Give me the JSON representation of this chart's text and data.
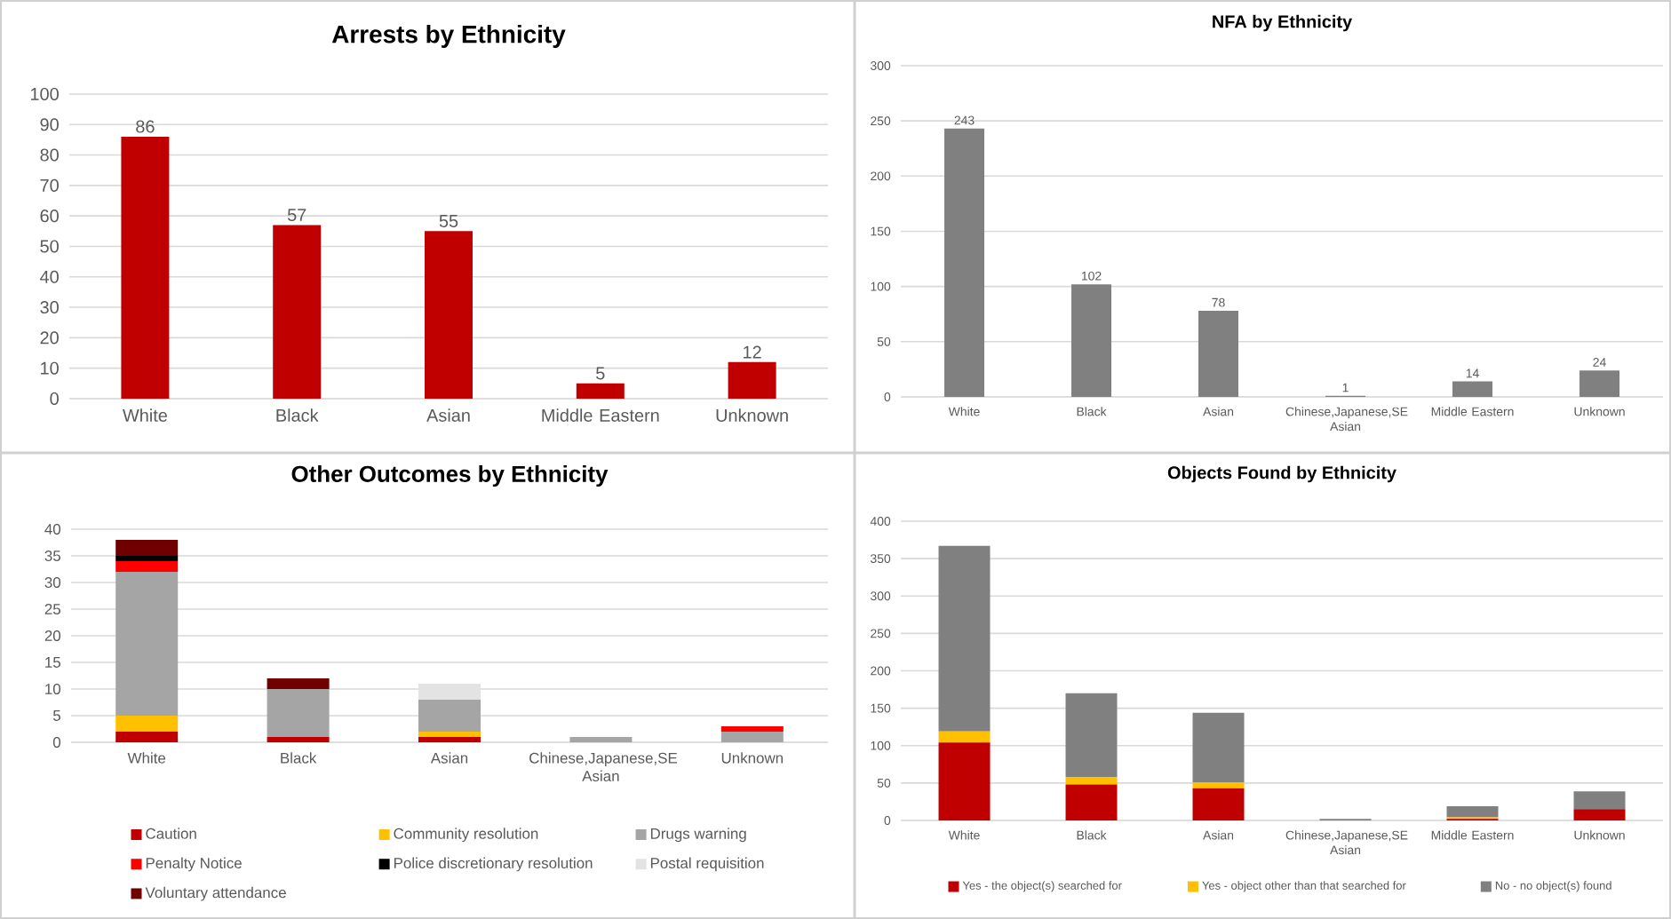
{
  "chart_data": [
    {
      "type": "bar",
      "title": "Arrests by Ethnicity",
      "categories": [
        "White",
        "Black",
        "Asian",
        "Middle Eastern",
        "Unknown"
      ],
      "values": [
        86,
        57,
        55,
        5,
        12
      ],
      "color": "#c00000",
      "ylim": [
        0,
        100
      ],
      "yticks": [
        0,
        10,
        20,
        30,
        40,
        50,
        60,
        70,
        80,
        90,
        100
      ],
      "grid": "y",
      "data_labels": true
    },
    {
      "type": "bar",
      "title": "NFA by Ethnicity",
      "categories": [
        "White",
        "Black",
        "Asian",
        "Chinese,Japanese,SE Asian",
        "Middle Eastern",
        "Unknown"
      ],
      "values": [
        243,
        102,
        78,
        1,
        14,
        24
      ],
      "color": "#808080",
      "ylim": [
        0,
        300
      ],
      "yticks": [
        0,
        50,
        100,
        150,
        200,
        250,
        300
      ],
      "grid": "y",
      "data_labels": true
    },
    {
      "type": "bar",
      "title": "Other Outcomes by Ethnicity",
      "categories": [
        "White",
        "Black",
        "Asian",
        "Chinese,Japanese,SE Asian",
        "Unknown"
      ],
      "stacked": true,
      "legend": "bottom",
      "ylim": [
        0,
        40
      ],
      "yticks": [
        0,
        5,
        10,
        15,
        20,
        25,
        30,
        35,
        40
      ],
      "grid": "y",
      "series": [
        {
          "name": "Caution",
          "color": "#c00000",
          "values": [
            2,
            1,
            1,
            0,
            0
          ]
        },
        {
          "name": "Community resolution",
          "color": "#ffc000",
          "values": [
            3,
            0,
            1,
            0,
            0
          ]
        },
        {
          "name": "Drugs warning",
          "color": "#a5a5a5",
          "values": [
            27,
            9,
            6,
            1,
            2
          ]
        },
        {
          "name": "Penalty Notice",
          "color": "#ff0000",
          "values": [
            2,
            0,
            0,
            0,
            1
          ]
        },
        {
          "name": "Police discretionary resolution",
          "color": "#000000",
          "values": [
            1,
            0,
            0,
            0,
            0
          ]
        },
        {
          "name": "Postal requisition",
          "color": "#e3e3e3",
          "values": [
            0,
            0,
            3,
            0,
            0
          ]
        },
        {
          "name": "Voluntary attendance",
          "color": "#700000",
          "values": [
            3,
            2,
            0,
            0,
            0
          ]
        }
      ]
    },
    {
      "type": "bar",
      "title": "Objects Found by Ethnicity",
      "categories": [
        "White",
        "Black",
        "Asian",
        "Chinese,Japanese,SE Asian",
        "Middle Eastern",
        "Unknown"
      ],
      "stacked": true,
      "legend": "bottom",
      "ylim": [
        0,
        400
      ],
      "yticks": [
        0,
        50,
        100,
        150,
        200,
        250,
        300,
        350,
        400
      ],
      "grid": "y",
      "series": [
        {
          "name": "Yes - the object(s) searched for",
          "color": "#c00000",
          "values": [
            104,
            48,
            43,
            0,
            2,
            15
          ]
        },
        {
          "name": "Yes - object other than that searched for",
          "color": "#ffc000",
          "values": [
            15,
            10,
            8,
            0,
            2,
            0
          ]
        },
        {
          "name": "No - no object(s) found",
          "color": "#808080",
          "values": [
            248,
            112,
            93,
            2,
            15,
            24
          ]
        }
      ]
    }
  ]
}
